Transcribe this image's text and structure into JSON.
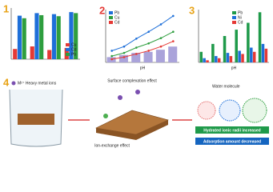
{
  "chart_data": [
    {
      "type": "bar",
      "label": "1",
      "categories": [
        null,
        null,
        null,
        null
      ],
      "series": [
        {
          "name": "Cu",
          "color": "#e53935",
          "values": [
            20,
            25,
            18,
            22
          ]
        },
        {
          "name": "Cd",
          "color": "#1e6fd9",
          "values": [
            85,
            90,
            88,
            92
          ]
        },
        {
          "name": "Pb",
          "color": "#2e9e3e",
          "values": [
            80,
            86,
            84,
            90
          ]
        }
      ],
      "ylim": [
        0,
        100
      ]
    },
    {
      "type": "line",
      "label": "2",
      "x_label": "pH",
      "categories": [
        null,
        null,
        null,
        null,
        null,
        null
      ],
      "series": [
        {
          "type": "bar",
          "color": "#aaa3da",
          "values": [
            10,
            14,
            18,
            20,
            24,
            30
          ]
        },
        {
          "name": "Pb",
          "color": "#1e6fd9",
          "values": [
            22,
            30,
            45,
            58,
            72,
            88
          ]
        },
        {
          "name": "Cu",
          "color": "#2e9e3e",
          "values": [
            12,
            18,
            28,
            36,
            46,
            58
          ]
        },
        {
          "name": "Cd",
          "color": "#e53935",
          "values": [
            6,
            10,
            16,
            22,
            30,
            40
          ]
        }
      ],
      "ylim": [
        0,
        100
      ]
    },
    {
      "type": "bar",
      "label": "3",
      "x_label": "pH",
      "categories": [
        null,
        null,
        null,
        null,
        null,
        null
      ],
      "series": [
        {
          "name": "Pb",
          "color": "#1f9a4a",
          "values": [
            20,
            35,
            50,
            62,
            75,
            95
          ]
        },
        {
          "name": "Ni",
          "color": "#1e6fd9",
          "values": [
            8,
            12,
            18,
            22,
            28,
            35
          ]
        },
        {
          "name": "Cd",
          "color": "#e53935",
          "values": [
            4,
            8,
            12,
            16,
            20,
            26
          ]
        }
      ],
      "ylim": [
        0,
        100
      ]
    }
  ],
  "diagram": {
    "label": "4",
    "ions": "M²⁺ Heavy metal ions",
    "surface": "Surface complexation effect",
    "exchange": "Ion-exchange effect",
    "water": "Water molecule",
    "radii": "Hydrated ionic radii increased",
    "adsorption": "Adsorption amount decreased"
  }
}
